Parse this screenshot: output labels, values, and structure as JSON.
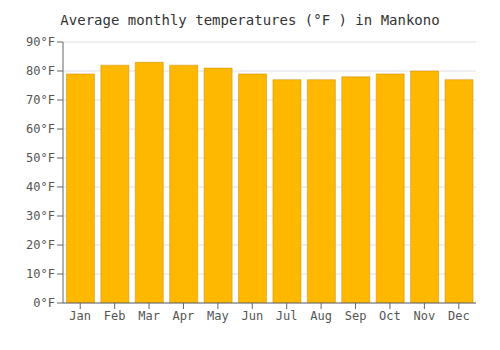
{
  "chart_data": {
    "type": "bar",
    "title": "Average monthly temperatures (°F ) in Mankono",
    "categories": [
      "Jan",
      "Feb",
      "Mar",
      "Apr",
      "May",
      "Jun",
      "Jul",
      "Aug",
      "Sep",
      "Oct",
      "Nov",
      "Dec"
    ],
    "values": [
      79,
      82,
      83,
      82,
      81,
      79,
      77,
      77,
      78,
      79,
      80,
      77
    ],
    "color": "#FFB800",
    "ylim": [
      0,
      90
    ],
    "yticks": [
      {
        "value": 0,
        "label": "0°F"
      },
      {
        "value": 10,
        "label": "10°F"
      },
      {
        "value": 20,
        "label": "20°F"
      },
      {
        "value": 30,
        "label": "30°F"
      },
      {
        "value": 40,
        "label": "40°F"
      },
      {
        "value": 50,
        "label": "50°F"
      },
      {
        "value": 60,
        "label": "60°F"
      },
      {
        "value": 70,
        "label": "70°F"
      },
      {
        "value": 80,
        "label": "80°F"
      },
      {
        "value": 90,
        "label": "90°F"
      }
    ],
    "grid": true
  }
}
